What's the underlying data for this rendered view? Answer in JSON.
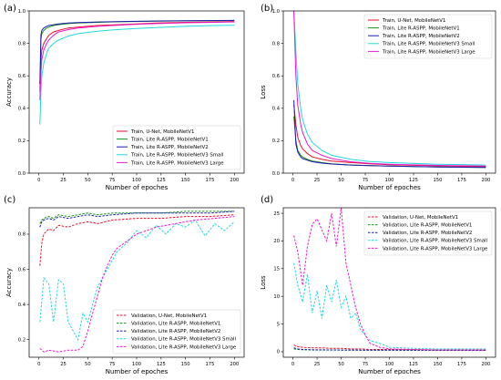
{
  "chart_data": [
    {
      "panel": "(a)",
      "type": "line",
      "xlabel": "Number of epoches",
      "ylabel": "Accuracy",
      "xlim": [
        -10,
        210
      ],
      "ylim": [
        0,
        1.0
      ],
      "xticks": [
        0,
        25,
        50,
        75,
        100,
        125,
        150,
        175,
        200
      ],
      "yticks": [
        0,
        0.2,
        0.4,
        0.6,
        0.8,
        1.0
      ],
      "legend_position": "lower-right",
      "series": [
        {
          "name": "Train, U-Net, MobileNetV1",
          "color": "#e8102b",
          "dash": "solid",
          "x": [
            1,
            2,
            3,
            5,
            8,
            10,
            15,
            20,
            30,
            40,
            60,
            80,
            100,
            120,
            150,
            180,
            200
          ],
          "y": [
            0.55,
            0.7,
            0.76,
            0.8,
            0.83,
            0.85,
            0.87,
            0.88,
            0.895,
            0.9,
            0.91,
            0.915,
            0.92,
            0.925,
            0.93,
            0.932,
            0.935
          ]
        },
        {
          "name": "Train, Lite R-ASPP, MobileNetV1",
          "color": "#1a8f1a",
          "dash": "solid",
          "x": [
            1,
            2,
            3,
            5,
            8,
            10,
            15,
            20,
            30,
            40,
            60,
            80,
            100,
            120,
            150,
            180,
            200
          ],
          "y": [
            0.5,
            0.82,
            0.86,
            0.88,
            0.895,
            0.9,
            0.91,
            0.915,
            0.922,
            0.926,
            0.93,
            0.933,
            0.935,
            0.937,
            0.939,
            0.94,
            0.941
          ]
        },
        {
          "name": "Train, Lite R-ASPP, MobileNetV2",
          "color": "#1c1cb0",
          "dash": "solid",
          "x": [
            1,
            2,
            3,
            5,
            8,
            10,
            15,
            20,
            30,
            40,
            60,
            80,
            100,
            120,
            150,
            180,
            200
          ],
          "y": [
            0.55,
            0.85,
            0.88,
            0.895,
            0.905,
            0.91,
            0.915,
            0.92,
            0.925,
            0.928,
            0.932,
            0.934,
            0.936,
            0.938,
            0.94,
            0.941,
            0.942
          ]
        },
        {
          "name": "Train, Lite R-ASPP, MobileNetV3 Small",
          "color": "#22d8e0",
          "dash": "solid",
          "x": [
            1,
            2,
            3,
            5,
            8,
            10,
            15,
            20,
            30,
            40,
            60,
            80,
            100,
            120,
            150,
            180,
            200
          ],
          "y": [
            0.3,
            0.5,
            0.6,
            0.68,
            0.74,
            0.77,
            0.8,
            0.82,
            0.845,
            0.86,
            0.875,
            0.885,
            0.892,
            0.898,
            0.905,
            0.91,
            0.912
          ]
        },
        {
          "name": "Train, Lite R-ASPP, MobileNetV3 Large",
          "color": "#e61ccd",
          "dash": "solid",
          "x": [
            1,
            2,
            3,
            5,
            8,
            10,
            15,
            20,
            30,
            40,
            60,
            80,
            100,
            120,
            150,
            180,
            200
          ],
          "y": [
            0.45,
            0.62,
            0.7,
            0.76,
            0.8,
            0.82,
            0.85,
            0.87,
            0.885,
            0.895,
            0.905,
            0.912,
            0.918,
            0.922,
            0.927,
            0.93,
            0.932
          ]
        }
      ]
    },
    {
      "panel": "(b)",
      "type": "line",
      "xlabel": "Number of epoches",
      "ylabel": "Loss",
      "xlim": [
        -10,
        210
      ],
      "ylim": [
        0,
        1.0
      ],
      "xticks": [
        0,
        25,
        50,
        75,
        100,
        125,
        150,
        175,
        200
      ],
      "yticks": [
        0,
        0.2,
        0.4,
        0.6,
        0.8,
        1.0
      ],
      "legend_position": "upper-right",
      "series": [
        {
          "name": "Train, U-Net, MobileNetV1",
          "color": "#e8102b",
          "dash": "solid",
          "x": [
            1,
            3,
            5,
            8,
            10,
            15,
            20,
            30,
            40,
            60,
            80,
            100,
            150,
            200
          ],
          "y": [
            0.42,
            0.3,
            0.22,
            0.17,
            0.15,
            0.12,
            0.1,
            0.085,
            0.075,
            0.065,
            0.058,
            0.052,
            0.045,
            0.04
          ]
        },
        {
          "name": "Train, Lite R-ASPP, MobileNetV1",
          "color": "#1a8f1a",
          "dash": "solid",
          "x": [
            1,
            3,
            5,
            8,
            10,
            15,
            20,
            30,
            40,
            60,
            80,
            100,
            150,
            200
          ],
          "y": [
            0.35,
            0.2,
            0.14,
            0.11,
            0.1,
            0.085,
            0.075,
            0.065,
            0.058,
            0.05,
            0.046,
            0.043,
            0.038,
            0.035
          ]
        },
        {
          "name": "Train, Lite R-ASPP, MobileNetV2",
          "color": "#1c1cb0",
          "dash": "solid",
          "x": [
            1,
            3,
            5,
            8,
            10,
            15,
            20,
            30,
            40,
            60,
            80,
            100,
            150,
            200
          ],
          "y": [
            0.45,
            0.18,
            0.13,
            0.1,
            0.09,
            0.08,
            0.07,
            0.062,
            0.056,
            0.05,
            0.046,
            0.043,
            0.038,
            0.035
          ]
        },
        {
          "name": "Train, Lite R-ASPP, MobileNetV3 Small",
          "color": "#22d8e0",
          "dash": "solid",
          "x": [
            1,
            3,
            5,
            8,
            10,
            15,
            20,
            30,
            40,
            60,
            80,
            100,
            150,
            200
          ],
          "y": [
            1.0,
            0.75,
            0.55,
            0.4,
            0.33,
            0.24,
            0.19,
            0.14,
            0.11,
            0.085,
            0.072,
            0.065,
            0.055,
            0.05
          ]
        },
        {
          "name": "Train, Lite R-ASPP, MobileNetV3 Large",
          "color": "#e61ccd",
          "dash": "solid",
          "x": [
            1,
            3,
            5,
            8,
            10,
            15,
            20,
            30,
            40,
            60,
            80,
            100,
            150,
            200
          ],
          "y": [
            1.0,
            0.6,
            0.42,
            0.3,
            0.25,
            0.18,
            0.14,
            0.11,
            0.09,
            0.07,
            0.06,
            0.055,
            0.048,
            0.044
          ]
        }
      ]
    },
    {
      "panel": "(c)",
      "type": "line",
      "xlabel": "Number of epoches",
      "ylabel": "Accuracy",
      "xlim": [
        -10,
        210
      ],
      "ylim": [
        0.1,
        0.95
      ],
      "xticks": [
        0,
        25,
        50,
        75,
        100,
        125,
        150,
        175,
        200
      ],
      "yticks": [
        0.2,
        0.4,
        0.6,
        0.8
      ],
      "legend_position": "lower-right",
      "series": [
        {
          "name": "Validation, U-Net, MobileNetV1",
          "color": "#e8102b",
          "dash": "dashed",
          "x": [
            1,
            3,
            5,
            10,
            15,
            20,
            30,
            40,
            50,
            60,
            75,
            100,
            125,
            150,
            175,
            200
          ],
          "y": [
            0.62,
            0.75,
            0.8,
            0.83,
            0.82,
            0.85,
            0.84,
            0.86,
            0.87,
            0.86,
            0.88,
            0.89,
            0.89,
            0.9,
            0.9,
            0.91
          ]
        },
        {
          "name": "Validation, Lite R-ASPP, MobileNetV1",
          "color": "#1a8f1a",
          "dash": "dashed",
          "x": [
            1,
            3,
            5,
            10,
            15,
            20,
            30,
            40,
            50,
            60,
            75,
            100,
            125,
            150,
            175,
            200
          ],
          "y": [
            0.86,
            0.88,
            0.89,
            0.9,
            0.89,
            0.91,
            0.9,
            0.91,
            0.92,
            0.91,
            0.92,
            0.92,
            0.92,
            0.93,
            0.93,
            0.93
          ]
        },
        {
          "name": "Validation, Lite R-ASPP, MobileNetV2",
          "color": "#1c1cb0",
          "dash": "dashed",
          "x": [
            1,
            3,
            5,
            10,
            15,
            20,
            30,
            40,
            50,
            60,
            75,
            100,
            125,
            150,
            175,
            200
          ],
          "y": [
            0.84,
            0.87,
            0.88,
            0.89,
            0.88,
            0.9,
            0.89,
            0.9,
            0.91,
            0.9,
            0.91,
            0.92,
            0.92,
            0.92,
            0.92,
            0.93
          ]
        },
        {
          "name": "Validation, Lite R-ASPP, MobileNetV3 Small",
          "color": "#22d8e0",
          "dash": "dashed",
          "x": [
            1,
            5,
            10,
            15,
            20,
            25,
            30,
            40,
            45,
            50,
            55,
            60,
            70,
            80,
            90,
            100,
            110,
            120,
            130,
            140,
            150,
            160,
            170,
            180,
            190,
            200
          ],
          "y": [
            0.3,
            0.55,
            0.52,
            0.3,
            0.54,
            0.52,
            0.3,
            0.2,
            0.35,
            0.3,
            0.4,
            0.5,
            0.6,
            0.7,
            0.75,
            0.82,
            0.78,
            0.85,
            0.8,
            0.86,
            0.84,
            0.88,
            0.79,
            0.86,
            0.82,
            0.87
          ]
        },
        {
          "name": "Validation, Lite R-ASPP, MobileNetV3 Large",
          "color": "#e61ccd",
          "dash": "dashed",
          "x": [
            1,
            5,
            10,
            20,
            30,
            40,
            45,
            50,
            55,
            60,
            65,
            70,
            75,
            80,
            90,
            100,
            110,
            120,
            130,
            140,
            150,
            160,
            180,
            200
          ],
          "y": [
            0.15,
            0.13,
            0.14,
            0.13,
            0.14,
            0.14,
            0.16,
            0.25,
            0.35,
            0.45,
            0.55,
            0.62,
            0.68,
            0.72,
            0.76,
            0.8,
            0.82,
            0.84,
            0.85,
            0.86,
            0.87,
            0.88,
            0.89,
            0.9
          ]
        }
      ]
    },
    {
      "panel": "(d)",
      "type": "line",
      "xlabel": "Number of epoches",
      "ylabel": "Loss",
      "xlim": [
        -10,
        210
      ],
      "ylim": [
        -1,
        26
      ],
      "xticks": [
        0,
        25,
        50,
        75,
        100,
        125,
        150,
        175,
        200
      ],
      "yticks": [
        0,
        5,
        10,
        15,
        20,
        25
      ],
      "legend_position": "upper-right",
      "series": [
        {
          "name": "Validation, U-Net, MobileNetV1",
          "color": "#e8102b",
          "dash": "dashed",
          "x": [
            1,
            5,
            10,
            20,
            30,
            40,
            50,
            60,
            70,
            80,
            100,
            125,
            150,
            175,
            200
          ],
          "y": [
            1.2,
            0.9,
            0.8,
            0.7,
            0.7,
            0.6,
            0.6,
            0.5,
            0.5,
            0.4,
            0.4,
            0.35,
            0.3,
            0.3,
            0.3
          ]
        },
        {
          "name": "Validation, Lite R-ASPP, MobileNetV1",
          "color": "#1a8f1a",
          "dash": "dashed",
          "x": [
            1,
            5,
            10,
            20,
            30,
            40,
            50,
            60,
            70,
            80,
            100,
            125,
            150,
            175,
            200
          ],
          "y": [
            0.5,
            0.4,
            0.35,
            0.3,
            0.3,
            0.3,
            0.28,
            0.27,
            0.26,
            0.25,
            0.25,
            0.24,
            0.24,
            0.23,
            0.23
          ]
        },
        {
          "name": "Validation, Lite R-ASPP, MobileNetV2",
          "color": "#1c1cb0",
          "dash": "dashed",
          "x": [
            1,
            5,
            10,
            20,
            30,
            40,
            50,
            60,
            70,
            80,
            100,
            125,
            150,
            175,
            200
          ],
          "y": [
            0.7,
            0.5,
            0.4,
            0.35,
            0.33,
            0.32,
            0.3,
            0.3,
            0.29,
            0.28,
            0.27,
            0.27,
            0.26,
            0.26,
            0.25
          ]
        },
        {
          "name": "Validation, Lite R-ASPP, MobileNetV3 Small",
          "color": "#22d8e0",
          "dash": "dashed",
          "x": [
            1,
            5,
            10,
            15,
            20,
            25,
            30,
            35,
            40,
            45,
            50,
            55,
            60,
            65,
            70,
            75,
            80,
            90,
            100,
            125,
            150,
            175,
            200
          ],
          "y": [
            16,
            12,
            9,
            14,
            7,
            11,
            6,
            12,
            9,
            13,
            8,
            10,
            6,
            7,
            4,
            3,
            2,
            1.5,
            0.8,
            0.6,
            0.5,
            0.5,
            0.5
          ]
        },
        {
          "name": "Validation, Lite R-ASPP, MobileNetV3 Large",
          "color": "#e61ccd",
          "dash": "dashed",
          "x": [
            1,
            5,
            10,
            15,
            20,
            25,
            30,
            35,
            40,
            45,
            50,
            55,
            60,
            65,
            70,
            75,
            80,
            90,
            100,
            125,
            150,
            175,
            200
          ],
          "y": [
            21,
            18,
            12,
            19,
            23,
            24,
            22,
            20,
            25,
            19,
            26,
            16,
            12,
            8,
            5,
            3,
            1.5,
            0.8,
            0.5,
            0.4,
            0.3,
            0.3,
            0.3
          ]
        }
      ]
    }
  ]
}
